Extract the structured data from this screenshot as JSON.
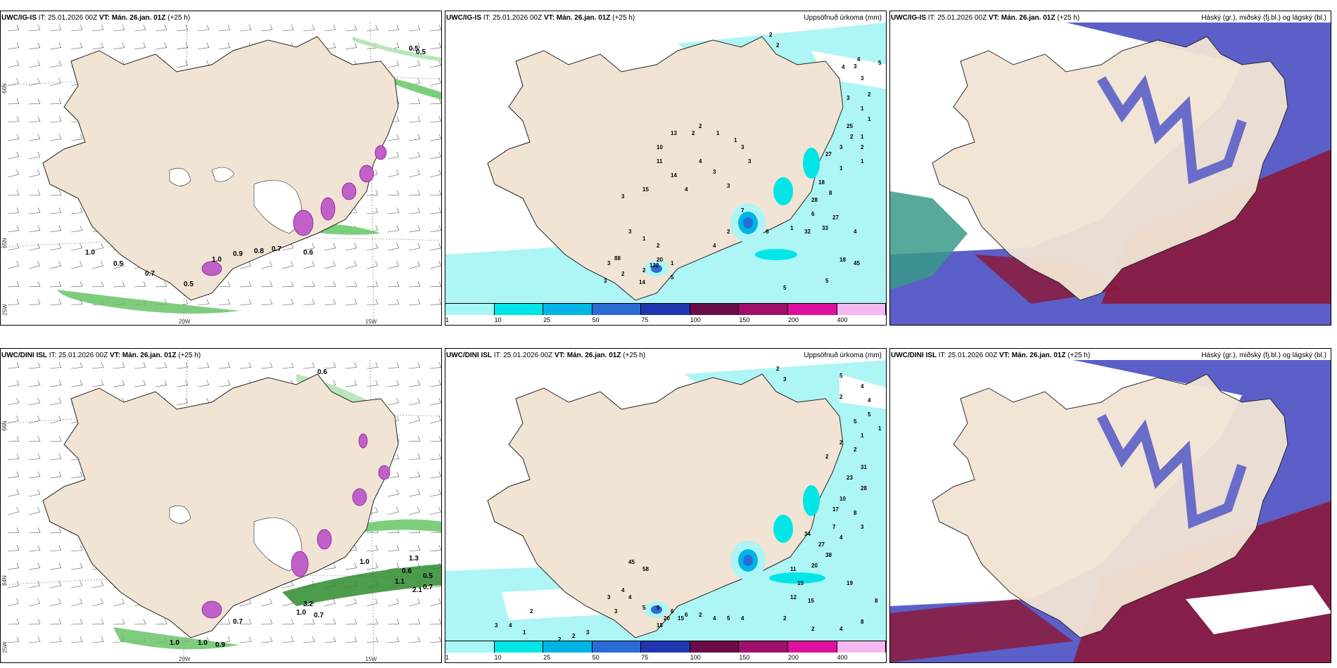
{
  "rows": [
    {
      "model": "UWC/IG-IS",
      "it_label": "IT: 25.01.2026 00Z",
      "vt_label": "VT: Mán. 26.jan. 01Z",
      "lead": "(+25 h)",
      "precip_unit_title": "Uppsöfnuð úrkoma (mm)",
      "cloud_title": "Háský (gr.), miðský (fj.bl.) og lágský (bl.)",
      "wind_values": [
        "0.5",
        "0.5",
        "1.0",
        "0.5",
        "0.7",
        "0.5",
        "1.0",
        "0.9",
        "0.8",
        "0.7",
        "0.6"
      ],
      "precip_values": [
        "2",
        "2",
        "4",
        "3",
        "5",
        "4",
        "3",
        "3",
        "2",
        "1",
        "2",
        "1",
        "1",
        "2",
        "25",
        "2",
        "3",
        "27",
        "1",
        "1",
        "18",
        "8",
        "28",
        "6",
        "33",
        "27",
        "32",
        "1",
        "4",
        "45",
        "18",
        "5",
        "5",
        "6",
        "7",
        "2",
        "4",
        "3",
        "15",
        "10",
        "13",
        "11",
        "14",
        "4",
        "4",
        "3",
        "3",
        "3",
        "3",
        "2",
        "2",
        "1",
        "1",
        "3",
        "1",
        "2",
        "1",
        "2",
        "3",
        "2",
        "3",
        "14",
        "88",
        "20",
        "5",
        "132"
      ]
    },
    {
      "model": "UWC/DINI ISL",
      "it_label": "IT: 25.01.2026 00Z",
      "vt_label": "VT: Mán. 26.jan. 01Z",
      "lead": "(+25 h)",
      "precip_unit_title": "Uppsöfnuð úrkoma (mm)",
      "cloud_title": "Háský (gr.), miðský (fj.bl.) og lágský (bl.)",
      "wind_values": [
        "0.6",
        "1.0",
        "0.6",
        "0.5",
        "0.7",
        "1.1",
        "2.1",
        "1.3",
        "1.0",
        "0.7",
        "1.0",
        "1.0",
        "0.9",
        "0.7",
        "3.2"
      ],
      "precip_values": [
        "2",
        "3",
        "5",
        "4",
        "4",
        "2",
        "5",
        "5",
        "1",
        "1",
        "2",
        "2",
        "2",
        "31",
        "23",
        "28",
        "10",
        "17",
        "8",
        "7",
        "4",
        "3",
        "34",
        "27",
        "38",
        "20",
        "11",
        "15",
        "19",
        "12",
        "15",
        "8",
        "8",
        "4",
        "2",
        "2",
        "4",
        "5",
        "4",
        "2",
        "6",
        "6",
        "5",
        "5",
        "4",
        "4",
        "3",
        "3",
        "18",
        "20",
        "15",
        "58",
        "45",
        "2",
        "4",
        "3",
        "1",
        "2",
        "2",
        "3"
      ]
    }
  ],
  "legend": {
    "ticks": [
      "1",
      "10",
      "25",
      "50",
      "75",
      "100",
      "150",
      "200",
      "400"
    ],
    "colors": [
      "#a8f6f6",
      "#00e6e6",
      "#00b4e6",
      "#2b6bd6",
      "#1f36b0",
      "#6a0c47",
      "#a0106a",
      "#e0109e",
      "#f5b8f0"
    ]
  },
  "axes": {
    "lat": [
      "66N",
      "65N",
      "64N"
    ],
    "lon": [
      "20W",
      "15W"
    ],
    "lon_extra": "25W"
  },
  "colors": {
    "land": "#f2e4d4",
    "sea_precip": "#aef5f5",
    "cloud_high": "#8b1a3c",
    "cloud_mid": "#5b5fc7",
    "cloud_low": "#3a9a8a",
    "wind_green": "#7bcf7b",
    "precip_purple": "#c060c8"
  }
}
